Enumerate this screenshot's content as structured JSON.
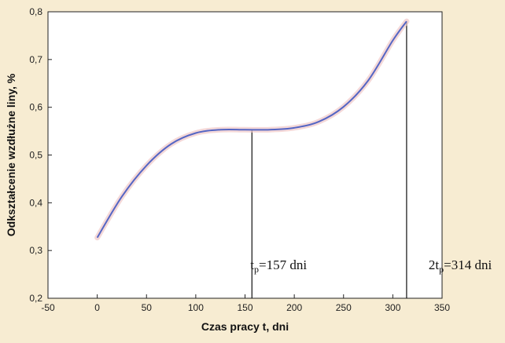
{
  "chart_data": {
    "type": "line",
    "title": "",
    "xlabel": "Czas pracy t, dni",
    "ylabel": "Odkształcenie wzdłużne liny, %",
    "xlim": [
      -50,
      350
    ],
    "ylim": [
      0.2,
      0.8
    ],
    "x_ticks": [
      -50,
      0,
      50,
      100,
      150,
      200,
      250,
      300,
      350
    ],
    "y_ticks": [
      0.2,
      0.3,
      0.4,
      0.5,
      0.6,
      0.7,
      0.8
    ],
    "x_tick_labels": [
      "-50",
      "0",
      "50",
      "100",
      "150",
      "200",
      "250",
      "300",
      "350"
    ],
    "y_tick_labels": [
      "0,2",
      "0,3",
      "0,4",
      "0,5",
      "0,6",
      "0,7",
      "0,8"
    ],
    "grid": false,
    "legend": "none",
    "series": [
      {
        "color": "#5566c4",
        "x": [
          0,
          25,
          50,
          75,
          100,
          125,
          150,
          175,
          200,
          225,
          250,
          275,
          300,
          314
        ],
        "y": [
          0.327,
          0.413,
          0.478,
          0.523,
          0.546,
          0.553,
          0.553,
          0.553,
          0.557,
          0.57,
          0.601,
          0.656,
          0.74,
          0.78
        ]
      }
    ],
    "annotations": [
      {
        "x": 157,
        "y_top": 0.553,
        "label_base": "t",
        "label_sub": "p",
        "label_rest": "=157 dni"
      },
      {
        "x": 314,
        "y_top": 0.78,
        "label_base": "2t",
        "label_sub": "p",
        "label_rest": "=314 dni"
      }
    ]
  }
}
